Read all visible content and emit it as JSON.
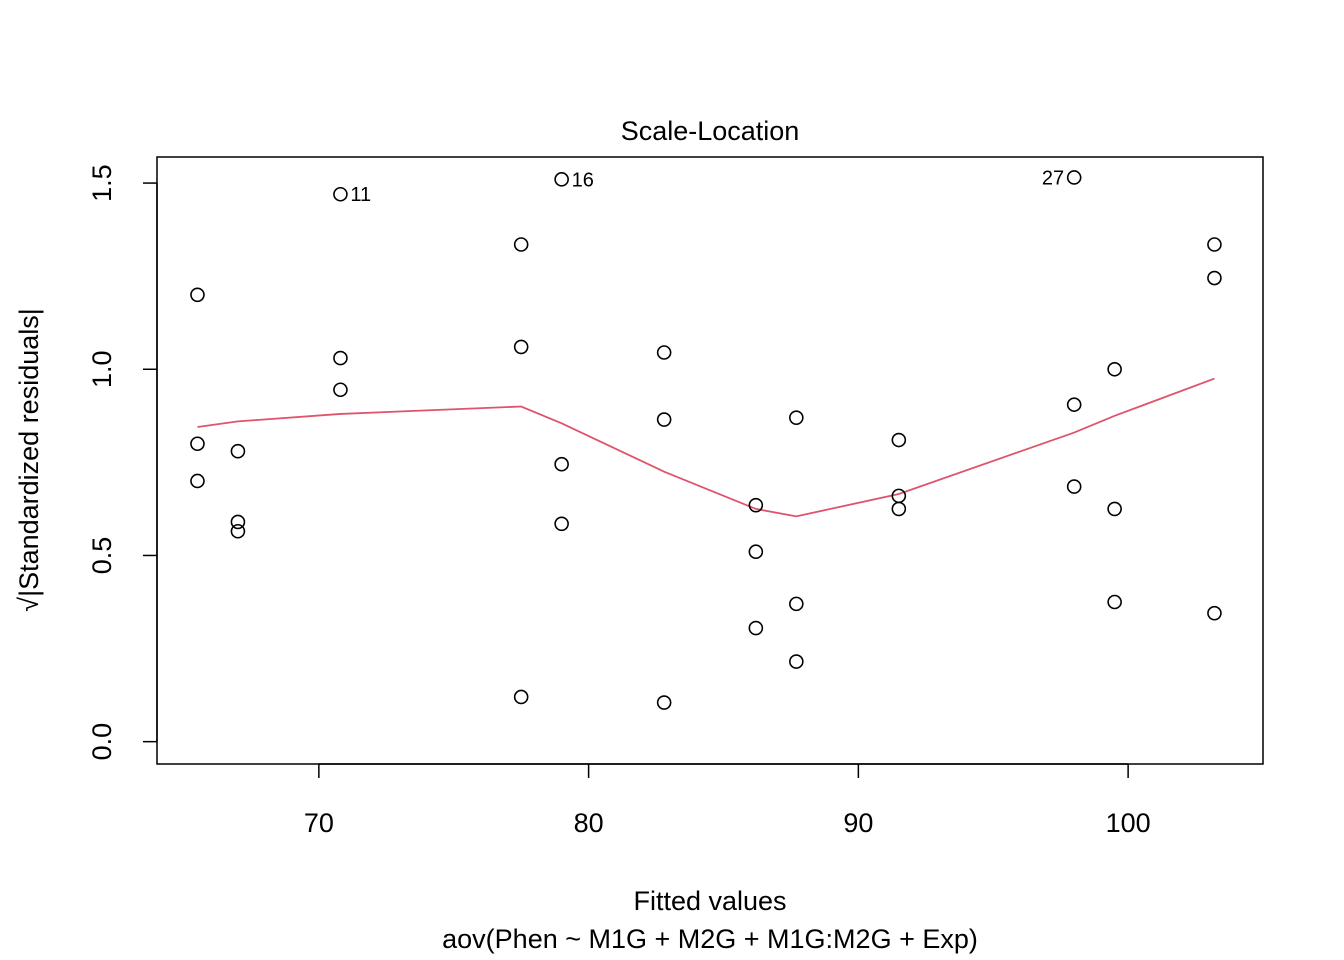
{
  "chart_data": {
    "type": "scatter",
    "title": "Scale-Location",
    "xlabel": "Fitted values",
    "subtitle": "aov(Phen ~ M1G + M2G + M1G:M2G + Exp)",
    "ylabel": "√|Standardized residuals|",
    "xlim": [
      64.0,
      105.0
    ],
    "ylim": [
      -0.06,
      1.57
    ],
    "xticks": [
      70,
      80,
      90,
      100
    ],
    "yticks": [
      0.0,
      0.5,
      1.0,
      1.5
    ],
    "xtick_labels": [
      "70",
      "80",
      "90",
      "100"
    ],
    "ytick_labels": [
      "0.0",
      "0.5",
      "1.0",
      "1.5"
    ],
    "grid": false,
    "points": [
      {
        "x": 65.5,
        "y": 1.2
      },
      {
        "x": 65.5,
        "y": 0.8
      },
      {
        "x": 65.5,
        "y": 0.7
      },
      {
        "x": 67.0,
        "y": 0.78
      },
      {
        "x": 67.0,
        "y": 0.59
      },
      {
        "x": 67.0,
        "y": 0.565
      },
      {
        "x": 70.8,
        "y": 1.47,
        "label": "11"
      },
      {
        "x": 70.8,
        "y": 1.03
      },
      {
        "x": 70.8,
        "y": 0.945
      },
      {
        "x": 77.5,
        "y": 1.335
      },
      {
        "x": 77.5,
        "y": 1.06
      },
      {
        "x": 77.5,
        "y": 0.12
      },
      {
        "x": 79.0,
        "y": 1.51,
        "label": "16"
      },
      {
        "x": 79.0,
        "y": 0.745
      },
      {
        "x": 79.0,
        "y": 0.585
      },
      {
        "x": 82.8,
        "y": 1.045
      },
      {
        "x": 82.8,
        "y": 0.865
      },
      {
        "x": 82.8,
        "y": 0.105
      },
      {
        "x": 86.2,
        "y": 0.635
      },
      {
        "x": 86.2,
        "y": 0.51
      },
      {
        "x": 86.2,
        "y": 0.305
      },
      {
        "x": 87.7,
        "y": 0.87
      },
      {
        "x": 87.7,
        "y": 0.37
      },
      {
        "x": 87.7,
        "y": 0.215
      },
      {
        "x": 91.5,
        "y": 0.81
      },
      {
        "x": 91.5,
        "y": 0.66
      },
      {
        "x": 91.5,
        "y": 0.625
      },
      {
        "x": 98.0,
        "y": 1.515,
        "label": "27"
      },
      {
        "x": 98.0,
        "y": 0.905
      },
      {
        "x": 98.0,
        "y": 0.685
      },
      {
        "x": 99.5,
        "y": 1.0
      },
      {
        "x": 99.5,
        "y": 0.625
      },
      {
        "x": 99.5,
        "y": 0.375
      },
      {
        "x": 103.2,
        "y": 1.335
      },
      {
        "x": 103.2,
        "y": 1.245
      },
      {
        "x": 103.2,
        "y": 0.345
      }
    ],
    "smooth_line": {
      "color": "#DF536B",
      "x": [
        65.5,
        67.0,
        70.8,
        77.5,
        79.0,
        82.8,
        86.2,
        87.7,
        91.5,
        98.0,
        99.5,
        103.2
      ],
      "y": [
        0.845,
        0.86,
        0.88,
        0.9,
        0.855,
        0.725,
        0.625,
        0.605,
        0.665,
        0.83,
        0.875,
        0.975
      ]
    }
  }
}
